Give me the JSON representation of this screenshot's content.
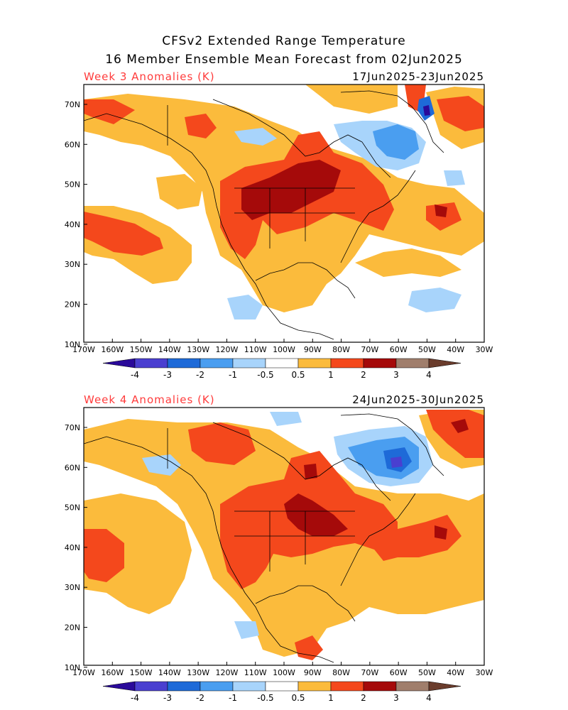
{
  "title_line1": "CFSv2 Extended Range Temperature",
  "title_line2": "16 Member Ensemble Mean Forecast from 02Jun2025",
  "colors": {
    "neg4": "#2a0a9a",
    "neg3": "#4a3fd0",
    "neg2": "#1e6ad8",
    "neg1": "#4a9ef0",
    "neg05": "#a8d4fb",
    "neutral": "#ffffff",
    "pos05": "#fbbb3c",
    "pos1": "#f4481c",
    "pos2": "#a50a0a",
    "pos3": "#a07e6c",
    "pos4": "#6a3c2c"
  },
  "lon_ticks": [
    "170W",
    "160W",
    "150W",
    "140W",
    "130W",
    "120W",
    "110W",
    "100W",
    "90W",
    "80W",
    "70W",
    "60W",
    "50W",
    "40W",
    "30W"
  ],
  "lat_ticks": [
    "70N",
    "60N",
    "50N",
    "40N",
    "30N",
    "20N",
    "10N"
  ],
  "colorbar_labels": [
    "-4",
    "-3",
    "-2",
    "-1",
    "-0.5",
    "0.5",
    "1",
    "2",
    "3",
    "4"
  ],
  "panels": [
    {
      "label": "Week 3 Anomalies (K)",
      "dates": "17Jun2025-23Jun2025"
    },
    {
      "label": "Week 4 Anomalies (K)",
      "dates": "24Jun2025-30Jun2025"
    }
  ]
}
